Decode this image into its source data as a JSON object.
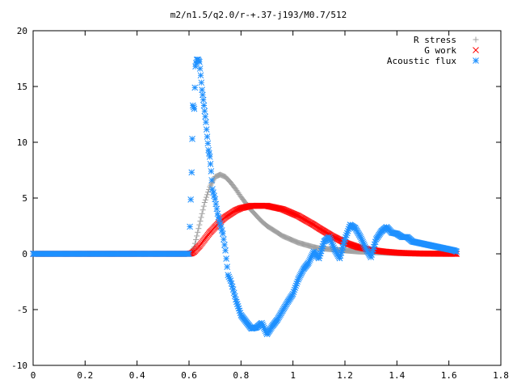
{
  "chart_data": {
    "type": "scatter",
    "title": "m2/n1.5/q2.0/r-+.37-j193/M0.7/512",
    "xlabel": "",
    "ylabel": "",
    "xlim": [
      0,
      1.8
    ],
    "ylim": [
      -10,
      20
    ],
    "xticks": [
      "0",
      "0.2",
      "0.4",
      "0.6",
      "0.8",
      "1",
      "1.2",
      "1.4",
      "1.6",
      "1.8"
    ],
    "yticks": [
      "-10",
      "-5",
      "0",
      "5",
      "10",
      "15",
      "20"
    ],
    "grid": false,
    "legend_position": "top-right",
    "series": [
      {
        "name": "R stress",
        "marker": "plus",
        "color": "#a0a0a0",
        "x": [
          0,
          0.1,
          0.2,
          0.3,
          0.4,
          0.5,
          0.6,
          0.61,
          0.62,
          0.64,
          0.66,
          0.68,
          0.7,
          0.72,
          0.74,
          0.76,
          0.78,
          0.8,
          0.82,
          0.84,
          0.86,
          0.88,
          0.9,
          0.92,
          0.94,
          0.96,
          0.98,
          1.0,
          1.02,
          1.05,
          1.08,
          1.1,
          1.15,
          1.2,
          1.25,
          1.3,
          1.35,
          1.4,
          1.45,
          1.5,
          1.55,
          1.6,
          1.63
        ],
        "y": [
          0,
          0,
          0,
          0,
          0,
          0,
          0,
          0.2,
          0.6,
          2.6,
          4.6,
          6.0,
          6.9,
          7.1,
          6.9,
          6.4,
          5.8,
          5.1,
          4.5,
          3.9,
          3.4,
          2.9,
          2.5,
          2.2,
          1.9,
          1.6,
          1.4,
          1.2,
          1.0,
          0.8,
          0.6,
          0.5,
          0.4,
          0.3,
          0.2,
          0.15,
          0.1,
          0.05,
          0.03,
          0.02,
          0.01,
          0,
          0
        ]
      },
      {
        "name": "G work",
        "marker": "cross",
        "color": "#ff0000",
        "x": [
          0,
          0.1,
          0.2,
          0.3,
          0.4,
          0.5,
          0.6,
          0.61,
          0.62,
          0.64,
          0.66,
          0.68,
          0.7,
          0.72,
          0.74,
          0.76,
          0.78,
          0.8,
          0.82,
          0.84,
          0.86,
          0.88,
          0.9,
          0.92,
          0.94,
          0.96,
          0.98,
          1.0,
          1.02,
          1.05,
          1.08,
          1.1,
          1.15,
          1.2,
          1.25,
          1.3,
          1.35,
          1.4,
          1.45,
          1.5,
          1.55,
          1.6,
          1.63
        ],
        "y": [
          0,
          0,
          0,
          0,
          0,
          0,
          0,
          0.05,
          0.2,
          0.7,
          1.3,
          1.9,
          2.4,
          2.9,
          3.3,
          3.6,
          3.9,
          4.1,
          4.2,
          4.3,
          4.3,
          4.3,
          4.3,
          4.2,
          4.1,
          4.0,
          3.8,
          3.6,
          3.4,
          3.0,
          2.6,
          2.3,
          1.6,
          1.0,
          0.6,
          0.35,
          0.2,
          0.1,
          0.05,
          0.02,
          0.01,
          0,
          0
        ]
      },
      {
        "name": "Acoustic flux",
        "marker": "star",
        "color": "#1e90ff",
        "x": [
          0,
          0.1,
          0.2,
          0.3,
          0.4,
          0.5,
          0.6,
          0.61,
          0.615,
          0.62,
          0.625,
          0.63,
          0.635,
          0.64,
          0.645,
          0.65,
          0.655,
          0.66,
          0.665,
          0.67,
          0.675,
          0.68,
          0.685,
          0.69,
          0.7,
          0.71,
          0.72,
          0.73,
          0.74,
          0.75,
          0.76,
          0.77,
          0.78,
          0.8,
          0.82,
          0.84,
          0.86,
          0.88,
          0.9,
          0.92,
          0.94,
          0.96,
          0.98,
          1.0,
          1.02,
          1.04,
          1.06,
          1.08,
          1.1,
          1.12,
          1.14,
          1.16,
          1.18,
          1.2,
          1.22,
          1.24,
          1.26,
          1.28,
          1.3,
          1.32,
          1.34,
          1.36,
          1.38,
          1.4,
          1.42,
          1.44,
          1.46,
          1.48,
          1.5,
          1.52,
          1.54,
          1.56,
          1.58,
          1.6,
          1.62,
          1.63
        ],
        "y": [
          0,
          0,
          0,
          0,
          0,
          0,
          0,
          7.3,
          13.3,
          13.0,
          16.8,
          17.4,
          17.4,
          17.2,
          16.0,
          14.7,
          13.8,
          12.8,
          11.8,
          10.5,
          9.3,
          8.7,
          7.4,
          5.8,
          4.9,
          3.6,
          2.7,
          1.8,
          0.3,
          -1.9,
          -2.4,
          -3.2,
          -4.1,
          -5.5,
          -6.1,
          -6.7,
          -6.6,
          -6.2,
          -7.2,
          -6.5,
          -5.9,
          -5.1,
          -4.3,
          -3.6,
          -2.3,
          -1.4,
          -0.8,
          0.2,
          -0.4,
          1.1,
          1.5,
          0.4,
          -0.4,
          1.3,
          2.6,
          2.3,
          1.5,
          0.5,
          -0.3,
          1.3,
          2.0,
          2.4,
          1.9,
          1.8,
          1.5,
          1.5,
          1.1,
          1.0,
          0.9,
          0.8,
          0.7,
          0.6,
          0.5,
          0.4,
          0.3,
          0.2
        ]
      }
    ]
  }
}
